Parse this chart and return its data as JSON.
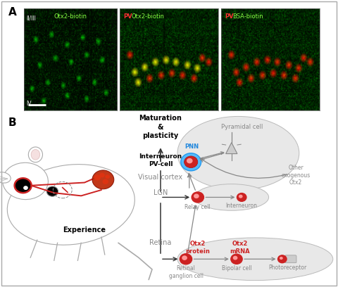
{
  "panel_a_label": "A",
  "panel_b_label": "B",
  "panel_a_images": [
    {
      "title_green": "Otx2-biotin",
      "title_red": null,
      "label_left_top": "II/III",
      "label_left_bottom": "IV",
      "has_scalebar": true
    },
    {
      "title_green": "Otx2-biotin",
      "title_red": "PV",
      "label_left_top": null,
      "label_left_bottom": null,
      "has_scalebar": false
    },
    {
      "title_green": "BSA-biotin",
      "title_red": "PV",
      "label_left_top": null,
      "label_left_bottom": null,
      "has_scalebar": false
    }
  ],
  "diagram": {
    "maturation_text": "Maturation\n&\nplasticity",
    "interneuron_pv_text": "Interneuron\nPV-cell",
    "visual_cortex_text": "Visual cortex",
    "lgn_text": "LGN",
    "relay_cell_text": "Relay cell",
    "experience_text": "Experience",
    "retina_text": "Retina",
    "retinal_ganglion_text": "Retinal\nganglion cell",
    "pyramidal_cell_text": "Pyramidal cell",
    "pnn_text": "PNN",
    "other_exo_text": "Other\nexogenous\nOtx2",
    "interneuron_text": "Interneuron",
    "otx2_protein_text": "Otx2\nprotein",
    "otx2_mrna_text": "Otx2\nmRNA",
    "bipolar_cell_text": "Bipolar cell",
    "photoreceptor_text": "Photoreceptor",
    "cell_red": "#cc2222",
    "cell_pink": "#ff8888",
    "pnn_color": "#44aaff",
    "gray_arrow": "#888888",
    "black_arrow": "#333333",
    "gray_text": "#888888",
    "dark_text": "#333333",
    "red_text": "#cc2222",
    "ellipse_fill": "#e8e8e8",
    "ellipse_edge": "#bbbbbb",
    "mouse_edge": "#aaaaaa",
    "mouse_fill": "white"
  }
}
